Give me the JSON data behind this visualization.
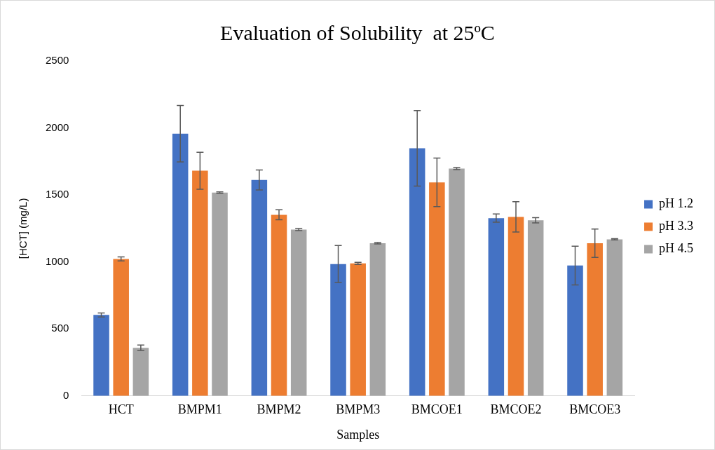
{
  "chart_data": {
    "type": "bar",
    "title": "Evaluation of Solubility  at 25ºC",
    "xlabel": "Samples",
    "ylabel": "[HCT] (mg/L)",
    "categories": [
      "HCT",
      "BMPM1",
      "BMPM2",
      "BMPM3",
      "BMCOE1",
      "BMCOE2",
      "BMCOE3"
    ],
    "series": [
      {
        "name": "pH 1.2",
        "color": "#4472c4",
        "values": [
          604,
          1957,
          1612,
          984,
          1848,
          1327,
          973
        ],
        "errors": [
          15,
          211,
          75,
          138,
          282,
          31,
          145
        ]
      },
      {
        "name": "pH 3.3",
        "color": "#ed7d31",
        "values": [
          1022,
          1681,
          1352,
          989,
          1594,
          1336,
          1140
        ],
        "errors": [
          15,
          138,
          37,
          8,
          181,
          113,
          106
        ]
      },
      {
        "name": "pH 4.5",
        "color": "#a5a5a5",
        "values": [
          359,
          1518,
          1242,
          1140,
          1697,
          1311,
          1169
        ],
        "errors": [
          20,
          5,
          8,
          5,
          8,
          20,
          5
        ]
      }
    ],
    "ylim": [
      0,
      2500
    ],
    "yticks": [
      0,
      500,
      1000,
      1500,
      2000,
      2500
    ],
    "grid": false,
    "legend": "right"
  }
}
